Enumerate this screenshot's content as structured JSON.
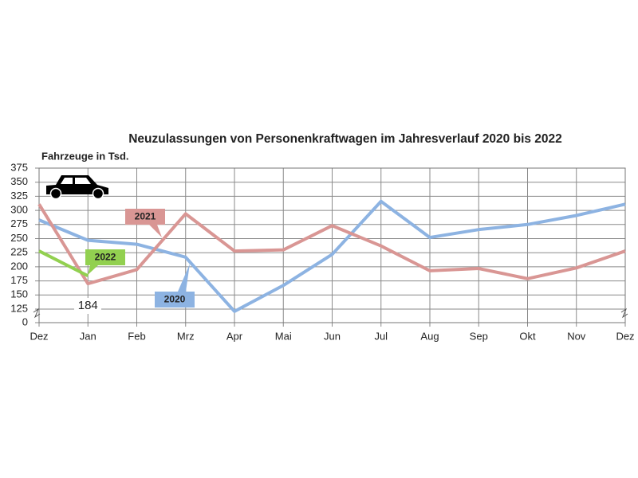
{
  "chart_data": {
    "type": "line",
    "title": "Neuzulassungen von Personenkraftwagen im Jahresverlauf 2020 bis 2022",
    "y_label": "Fahrzeuge in Tsd.",
    "categories": [
      "Dez",
      "Jan",
      "Feb",
      "Mrz",
      "Apr",
      "Mai",
      "Jun",
      "Jul",
      "Aug",
      "Sep",
      "Okt",
      "Nov",
      "Dez"
    ],
    "series": [
      {
        "name": "2020",
        "color": "#8db3e2",
        "values": [
          283,
          247,
          240,
          217,
          121,
          167,
          222,
          316,
          252,
          266,
          275,
          291,
          311
        ]
      },
      {
        "name": "2021",
        "color": "#d99694",
        "values": [
          311,
          170,
          195,
          294,
          228,
          230,
          273,
          237,
          193,
          197,
          179,
          198,
          228
        ]
      },
      {
        "name": "2022",
        "color": "#92d050",
        "values": [
          228,
          184,
          null,
          null,
          null,
          null,
          null,
          null,
          null,
          null,
          null,
          null,
          null
        ]
      }
    ],
    "ylim": [
      125,
      375
    ],
    "yticks": [
      0,
      125,
      150,
      175,
      200,
      225,
      250,
      275,
      300,
      325,
      350,
      375
    ],
    "axis_break": true,
    "grid": true
  }
}
